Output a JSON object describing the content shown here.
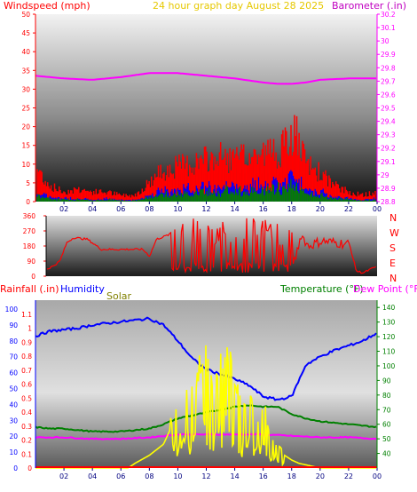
{
  "header": {
    "left": "Windspeed (mph)",
    "center": "24 hour graph day   August 28 2025",
    "right": "Barometer (.in)"
  },
  "colors": {
    "windspeed": "#ff0000",
    "gust_blue": "#0000ff",
    "gust_green": "#008000",
    "barometer": "#ff00ff",
    "direction": "#ff0000",
    "humidity": "#0000ff",
    "solar": "#ffff00",
    "temperature": "#008000",
    "dewpoint": "#ff00ff",
    "rainfall": "#ff0000",
    "header_left": "#ff0000",
    "header_center": "#e6c800",
    "header_right": "#c000c0"
  },
  "panel3_labels": {
    "rainfall": "Rainfall (.in)",
    "humidity": "Humidity",
    "solar": "Solar",
    "temperature": "Temperature (°F)",
    "dewpoint": "Dew Point (°F)"
  },
  "compass": [
    "N",
    "W",
    "S",
    "E",
    "N"
  ],
  "x_ticks": [
    "02",
    "04",
    "06",
    "08",
    "10",
    "12",
    "14",
    "16",
    "18",
    "20",
    "22",
    "00"
  ],
  "chart_data": [
    {
      "type": "area",
      "name": "wind-barometer",
      "x_unit": "hour",
      "xlim": [
        0,
        24
      ],
      "y_left": {
        "label": "Windspeed (mph)",
        "ylim": [
          0,
          50
        ],
        "ticks": [
          "0",
          "5",
          "10",
          "15",
          "20",
          "25",
          "30",
          "35",
          "40",
          "45",
          "50"
        ]
      },
      "y_right": {
        "label": "Barometer (.in)",
        "ylim": [
          28.8,
          30.2
        ],
        "ticks": [
          "28.8",
          "28.9",
          "29",
          "29.1",
          "29.2",
          "29.3",
          "29.4",
          "29.5",
          "29.6",
          "29.7",
          "29.8",
          "29.9",
          "30",
          "30.1",
          "30.2"
        ]
      },
      "series": [
        {
          "name": "Windspeed",
          "axis": "left",
          "x": [
            0,
            0.5,
            1,
            1.5,
            2,
            3,
            4,
            5,
            6,
            7,
            8,
            9,
            10,
            11,
            12,
            13,
            14,
            15,
            16,
            17,
            17.5,
            18,
            18.3,
            18.6,
            19,
            20,
            21,
            22,
            23,
            24
          ],
          "values": [
            6,
            5,
            3,
            2,
            2,
            2,
            1,
            2,
            1,
            1,
            4,
            7,
            7,
            8,
            9,
            9,
            10,
            9,
            10,
            11,
            12,
            14,
            17,
            12,
            8,
            6,
            3,
            2,
            1,
            2
          ]
        },
        {
          "name": "Gust",
          "axis": "left",
          "x": [
            0,
            0.5,
            1,
            2,
            3,
            4,
            5,
            6,
            7,
            8,
            9,
            10,
            11,
            12,
            13,
            14,
            15,
            16,
            17,
            17.5,
            18,
            18.3,
            18.6,
            19,
            20,
            21,
            22,
            23,
            24
          ],
          "values": [
            11,
            8,
            5,
            3,
            4,
            3,
            3,
            2,
            2,
            6,
            10,
            11,
            12,
            13,
            14,
            13,
            14,
            15,
            16,
            17,
            20,
            22,
            16,
            12,
            9,
            5,
            3,
            2,
            3
          ]
        },
        {
          "name": "Barometer",
          "axis": "right",
          "x": [
            0,
            2,
            4,
            6,
            8,
            10,
            12,
            14,
            16,
            17,
            18,
            19,
            20,
            22,
            24
          ],
          "values": [
            29.74,
            29.72,
            29.71,
            29.73,
            29.76,
            29.76,
            29.74,
            29.72,
            29.69,
            29.68,
            29.68,
            29.69,
            29.71,
            29.72,
            29.72
          ]
        }
      ]
    },
    {
      "type": "line",
      "name": "wind-direction",
      "x_unit": "hour",
      "xlim": [
        0,
        24
      ],
      "ylim": [
        0,
        360
      ],
      "y_ticks": [
        "0",
        "90",
        "180",
        "270",
        "360"
      ],
      "series": [
        {
          "name": "Direction",
          "x": [
            0,
            0.5,
            1,
            1.5,
            2,
            3,
            4,
            5,
            6,
            7,
            7.5,
            8,
            9,
            10,
            11,
            12,
            13,
            14,
            15,
            16,
            17,
            18,
            18.5,
            19,
            20,
            21,
            22,
            22.5,
            23,
            24
          ],
          "values": [
            40,
            60,
            90,
            200,
            230,
            220,
            160,
            160,
            160,
            160,
            120,
            220,
            250,
            200,
            180,
            220,
            170,
            200,
            190,
            160,
            150,
            80,
            250,
            180,
            210,
            200,
            190,
            30,
            20,
            60
          ]
        }
      ]
    },
    {
      "type": "line",
      "name": "humidity-temperature-solar",
      "x_unit": "hour",
      "xlim": [
        0,
        24
      ],
      "y_left": {
        "label": "Rainfall (.in)",
        "ylim": [
          0,
          1.2
        ],
        "ticks": [
          "0",
          "0.1",
          "0.2",
          "0.3",
          "0.4",
          "0.5",
          "0.6",
          "0.7",
          "0.8",
          "0.9",
          "1",
          "1.1"
        ]
      },
      "y_left2": {
        "label": "Humidity",
        "ylim": [
          0,
          100
        ],
        "ticks": [
          "0",
          "10",
          "20",
          "30",
          "40",
          "50",
          "60",
          "70",
          "80",
          "90",
          "100"
        ]
      },
      "y_right": {
        "label": "Temperature (°F)",
        "ylim": [
          30,
          145
        ],
        "ticks": [
          "40",
          "50",
          "60",
          "70",
          "80",
          "90",
          "100",
          "110",
          "120",
          "130",
          "140"
        ]
      },
      "series": [
        {
          "name": "Humidity",
          "axis": "left2",
          "x": [
            0,
            1,
            2,
            3,
            4,
            5,
            6,
            7,
            8,
            9,
            10,
            11,
            12,
            13,
            14,
            15,
            16,
            17,
            17.5,
            18,
            19,
            20,
            21,
            22,
            23,
            24
          ],
          "values": [
            83,
            86,
            87,
            88,
            90,
            91,
            92,
            93,
            94,
            90,
            80,
            69,
            62,
            59,
            56,
            52,
            45,
            43,
            44,
            45,
            65,
            70,
            74,
            77,
            80,
            85
          ]
        },
        {
          "name": "Temperature",
          "axis": "right",
          "x": [
            0,
            1,
            2,
            3,
            4,
            5,
            6,
            7,
            8,
            9,
            10,
            11,
            12,
            13,
            14,
            15,
            16,
            17,
            18,
            19,
            20,
            21,
            22,
            23,
            24
          ],
          "values": [
            58,
            57,
            57,
            56,
            55,
            55,
            55,
            56,
            57,
            60,
            64,
            66,
            68,
            70,
            72,
            73,
            72,
            72,
            67,
            64,
            62,
            61,
            60,
            59,
            58
          ]
        },
        {
          "name": "Dew Point",
          "axis": "right",
          "x": [
            0,
            2,
            4,
            6,
            8,
            10,
            12,
            14,
            16,
            18,
            20,
            22,
            24
          ],
          "values": [
            51,
            51,
            50,
            50,
            51,
            53,
            53,
            53,
            53,
            52,
            51,
            51,
            50
          ]
        },
        {
          "name": "Solar",
          "axis": "left2",
          "x": [
            0,
            6.5,
            7,
            8,
            9,
            10,
            10.5,
            11,
            11.5,
            12,
            12.5,
            13,
            13.5,
            14,
            14.5,
            15,
            15.5,
            16,
            16.5,
            17,
            17.5,
            18,
            18.5,
            19,
            19.5,
            20,
            24
          ],
          "values": [
            0,
            0,
            3,
            8,
            15,
            35,
            50,
            40,
            55,
            60,
            45,
            58,
            62,
            50,
            30,
            40,
            25,
            38,
            15,
            12,
            8,
            5,
            3,
            2,
            1,
            0,
            0
          ]
        },
        {
          "name": "Rainfall",
          "axis": "left",
          "x": [
            0,
            24
          ],
          "values": [
            0,
            0
          ]
        }
      ]
    }
  ]
}
